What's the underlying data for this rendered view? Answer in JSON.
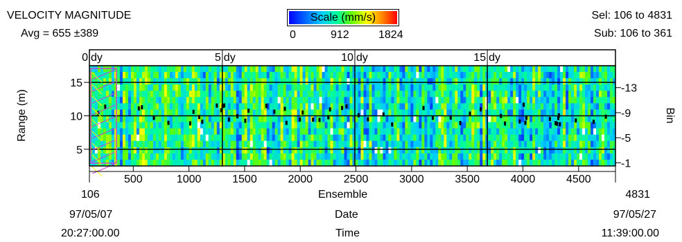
{
  "header": {
    "title": "VELOCITY MAGNITUDE",
    "avg": "Avg = 655 ±389",
    "sel": "Sel: 106 to 4831",
    "sub": "Sub: 106 to 361"
  },
  "scale": {
    "label": "Scale (mm/s)",
    "ticks": [
      "0",
      "912",
      "1824"
    ]
  },
  "footer": {
    "ensemble_start": "106",
    "ensemble_end": "4831",
    "ensemble_label": "Ensemble",
    "date_start": "97/05/07",
    "date_end": "97/05/27",
    "date_label": "Date",
    "time_start": "20:27:00.00",
    "time_end": "11:39:00.00",
    "time_label": "Time"
  },
  "chart_data": {
    "type": "heatmap",
    "title": "VELOCITY MAGNITUDE",
    "xlabel": "Ensemble",
    "ylabel": "Range (m)",
    "y2label": "Bin",
    "x_range": [
      106,
      4831
    ],
    "x_ticks": [
      500,
      1000,
      1500,
      2000,
      2500,
      3000,
      3500,
      4000,
      4500
    ],
    "y_range": [
      2.5,
      17.5
    ],
    "y_ticks": [
      5,
      10,
      15
    ],
    "bin_ticks": [
      1,
      5,
      9,
      13
    ],
    "top_axis_labels": [
      "0 dy",
      "5 dy",
      "10 dy",
      "15 dy"
    ],
    "top_axis_ensembles": [
      106,
      1300,
      2490,
      3680
    ],
    "color_scale": {
      "min": 0,
      "max": 1824,
      "unit": "mm/s"
    },
    "selected_subrange": [
      106,
      361
    ],
    "grid": true
  }
}
